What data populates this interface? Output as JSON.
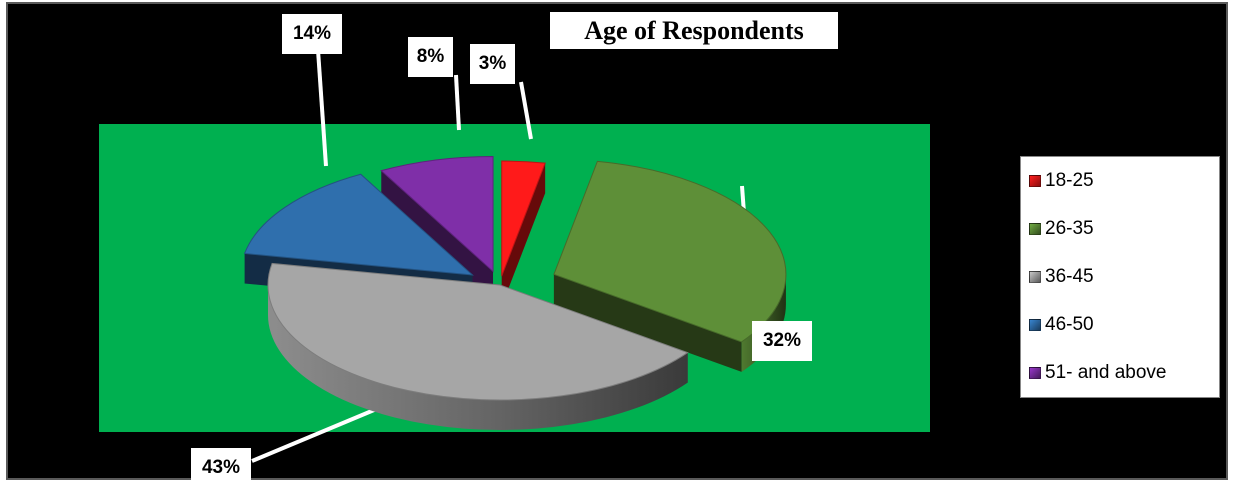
{
  "chart_data": {
    "type": "pie",
    "title": "Age of Respondents",
    "categories": [
      "18-25",
      "26-35",
      "36-45",
      "46-50",
      "51- and above"
    ],
    "values": [
      3,
      32,
      43,
      14,
      8
    ],
    "data_labels": [
      "3%",
      "32%",
      "43%",
      "14%",
      "8%"
    ],
    "colors": [
      "#ff1a1a",
      "#5e8f38",
      "#a6a6a6",
      "#2f6fad",
      "#7f2fa8"
    ],
    "exploded": true,
    "three_d": true,
    "legend_position": "right"
  }
}
